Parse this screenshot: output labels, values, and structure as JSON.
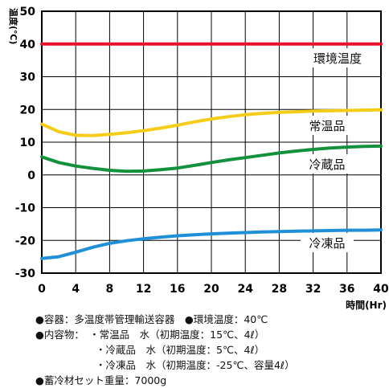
{
  "chart_data": {
    "type": "line",
    "ylabel": "温度(℃)",
    "xlabel": "時間(Hr)",
    "xlim": [
      0,
      40
    ],
    "ylim": [
      -30,
      50
    ],
    "x_ticks": [
      0,
      4,
      8,
      12,
      16,
      20,
      24,
      28,
      32,
      36,
      40
    ],
    "y_ticks": [
      50,
      40,
      30,
      20,
      10,
      0,
      -10,
      -20,
      -30
    ],
    "x_tick_labels": [
      "0",
      "4",
      "8",
      "12",
      "16",
      "20",
      "24",
      "28",
      "32",
      "36",
      "40"
    ],
    "y_tick_labels": [
      "50",
      "40",
      "30",
      "20",
      "10",
      "0",
      "-10",
      "-20",
      "-30"
    ],
    "grid": true,
    "series": [
      {
        "name": "環境温度",
        "color": "#e8102a",
        "x": [
          0,
          40
        ],
        "y": [
          40,
          40
        ]
      },
      {
        "name": "常温品",
        "color": "#f5cd19",
        "x": [
          0,
          2,
          4,
          6,
          8,
          10,
          12,
          14,
          16,
          18,
          20,
          22,
          24,
          26,
          28,
          30,
          32,
          34,
          36,
          38,
          40
        ],
        "y": [
          15.5,
          13.2,
          12.1,
          12.0,
          12.4,
          12.9,
          13.5,
          14.3,
          15.2,
          16.2,
          17.1,
          17.8,
          18.4,
          18.8,
          19.1,
          19.3,
          19.5,
          19.6,
          19.7,
          19.8,
          19.9
        ]
      },
      {
        "name": "冷蔵品",
        "color": "#14913c",
        "x": [
          0,
          2,
          4,
          6,
          8,
          10,
          12,
          14,
          16,
          18,
          20,
          22,
          24,
          26,
          28,
          30,
          32,
          34,
          36,
          38,
          40
        ],
        "y": [
          5.5,
          3.8,
          2.7,
          2.0,
          1.4,
          1.1,
          1.2,
          1.6,
          2.1,
          2.9,
          3.8,
          4.6,
          5.3,
          6.0,
          6.7,
          7.3,
          7.8,
          8.2,
          8.5,
          8.7,
          8.8
        ]
      },
      {
        "name": "冷凍品",
        "color": "#1f90d8",
        "x": [
          0,
          2,
          4,
          6,
          8,
          10,
          12,
          14,
          16,
          18,
          20,
          22,
          24,
          26,
          28,
          30,
          32,
          34,
          36,
          38,
          40
        ],
        "y": [
          -25.5,
          -25.0,
          -23.6,
          -22.1,
          -20.9,
          -20.1,
          -19.5,
          -19.0,
          -18.6,
          -18.3,
          -18.0,
          -17.8,
          -17.6,
          -17.4,
          -17.3,
          -17.2,
          -17.1,
          -17.0,
          -16.9,
          -16.9,
          -16.8
        ]
      }
    ],
    "series_labels": [
      "環境温度",
      "常温品",
      "冷蔵品",
      "冷凍品"
    ]
  },
  "notes": [
    "●容器：多温度帯管理輸送容器　●環境温度：40℃",
    "●内容物：　・常温品　水（初期温度：15℃、4ℓ）",
    "　　　　　　・冷蔵品　水（初期温度：5℃、4ℓ）",
    "　　　　　　・冷凍品　水（初期温度：-25℃、容量4ℓ）",
    "●蓄冷材セット重量：7000g"
  ]
}
